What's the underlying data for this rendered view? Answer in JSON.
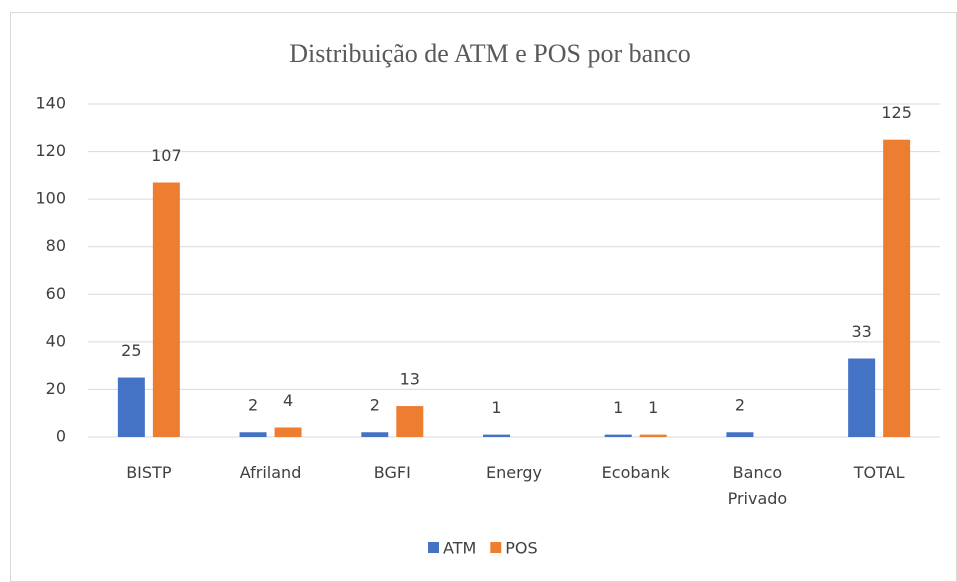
{
  "chart_data": {
    "type": "bar",
    "title": "Distribuição de ATM e POS por banco",
    "categories": [
      "BISTP",
      "Afriland",
      "BGFI",
      "Energy",
      "Ecobank",
      "Banco Privado",
      "TOTAL"
    ],
    "series": [
      {
        "name": "ATM",
        "color": "#4472c4",
        "values": [
          25,
          2,
          2,
          1,
          1,
          2,
          33
        ]
      },
      {
        "name": "POS",
        "color": "#ed7d31",
        "values": [
          107,
          4,
          13,
          null,
          1,
          null,
          125
        ]
      }
    ],
    "ylim": [
      0,
      140
    ],
    "yticks": [
      0,
      20,
      40,
      60,
      80,
      100,
      120,
      140
    ],
    "grid": true,
    "legend": "bottom"
  }
}
